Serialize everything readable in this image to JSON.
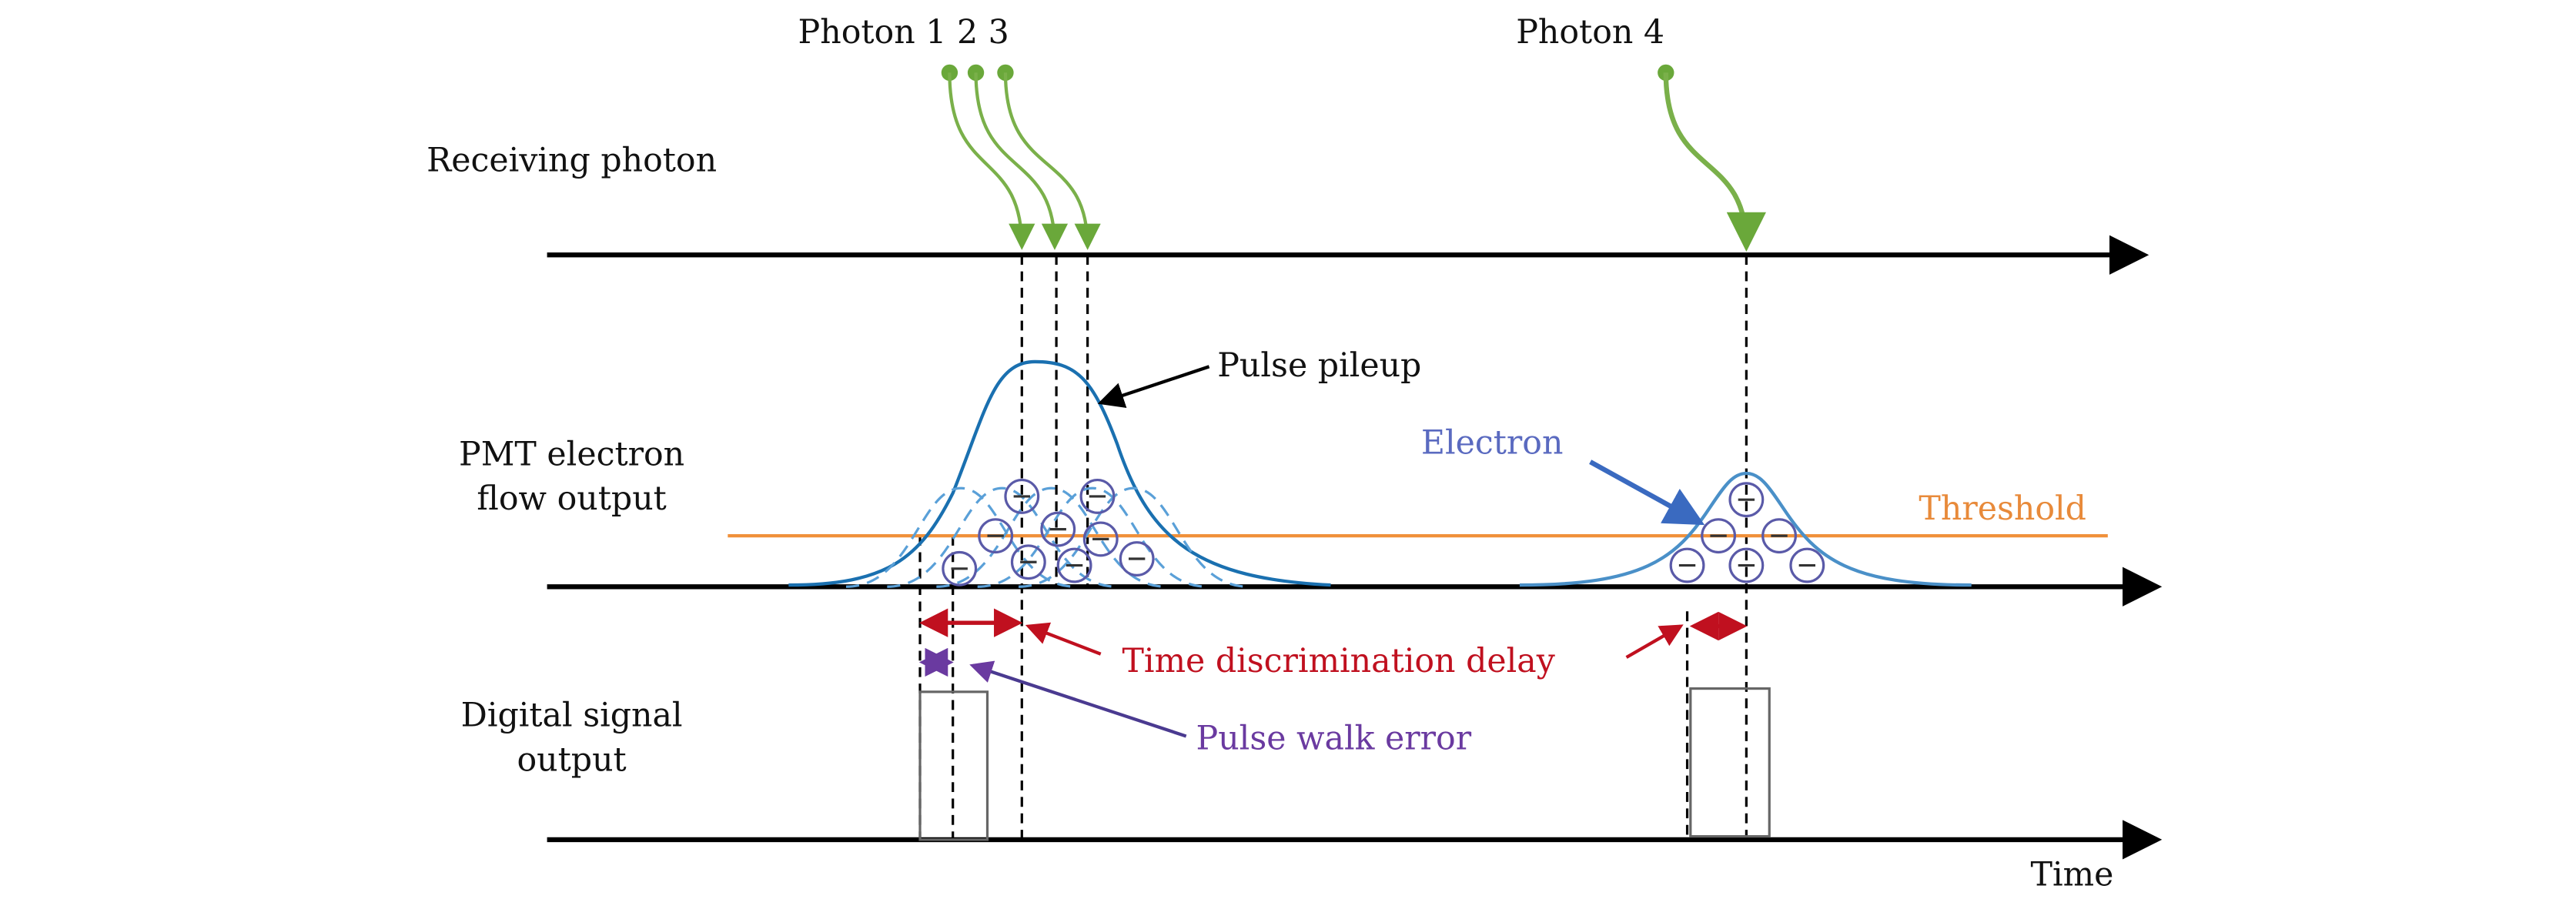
{
  "photons": {
    "group_label": "Photon 1 2 3",
    "single_label": "Photon 4"
  },
  "rows": [
    {
      "label_lines": [
        "Receiving photon"
      ]
    },
    {
      "label_lines": [
        "PMT electron",
        "flow output"
      ]
    },
    {
      "label_lines": [
        "Digital signal",
        "output"
      ]
    }
  ],
  "annotations": {
    "pulse_pileup": "Pulse pileup",
    "electron": "Electron",
    "threshold": "Threshold",
    "time_discrimination_delay": "Time discrimination delay",
    "pulse_walk_error": "Pulse walk error"
  },
  "axis_label": "Time"
}
